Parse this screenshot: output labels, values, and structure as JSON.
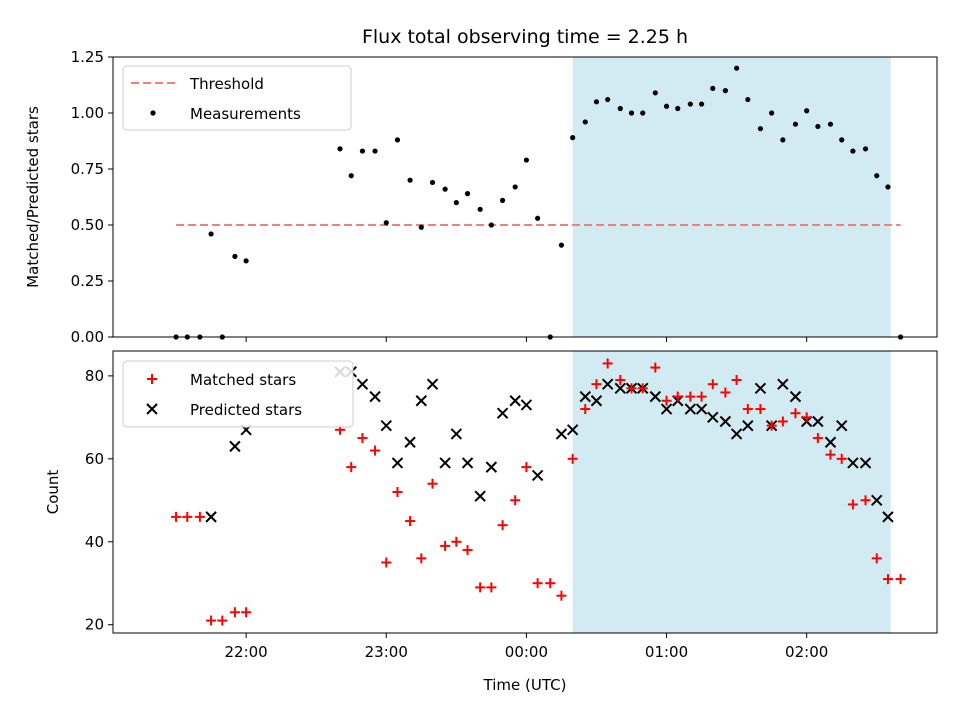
{
  "title": "Flux total observing time = 2.25 h",
  "colors": {
    "threshold": "#f08080",
    "measurement": "#000000",
    "matched": "#ff0000",
    "predicted": "#000000",
    "shade": "#add8e6"
  },
  "chart_data": [
    {
      "type": "scatter",
      "ylabel": "Matched/Predicted stars",
      "ylim": [
        0.0,
        1.25
      ],
      "yticks": [
        "0.00",
        "0.25",
        "0.50",
        "0.75",
        "1.00",
        "1.25"
      ],
      "xlim_hours": [
        21.05,
        26.93
      ],
      "shaded_span_hours": [
        24.33,
        26.6
      ],
      "legend_position": "top-left",
      "threshold": {
        "name": "Threshold",
        "value": 0.5,
        "x_start_hours": 21.5,
        "x_end_hours": 26.67
      },
      "series": [
        {
          "name": "Measurements",
          "points": [
            [
              21.5,
              0.0
            ],
            [
              21.58,
              0.0
            ],
            [
              21.67,
              0.0
            ],
            [
              21.75,
              0.46
            ],
            [
              21.83,
              0.0
            ],
            [
              21.92,
              0.36
            ],
            [
              22.0,
              0.34
            ],
            [
              22.67,
              0.84
            ],
            [
              22.75,
              0.72
            ],
            [
              22.83,
              0.83
            ],
            [
              22.92,
              0.83
            ],
            [
              23.0,
              0.51
            ],
            [
              23.08,
              0.88
            ],
            [
              23.17,
              0.7
            ],
            [
              23.25,
              0.49
            ],
            [
              23.33,
              0.69
            ],
            [
              23.42,
              0.66
            ],
            [
              23.5,
              0.6
            ],
            [
              23.58,
              0.64
            ],
            [
              23.67,
              0.57
            ],
            [
              23.75,
              0.5
            ],
            [
              23.83,
              0.61
            ],
            [
              23.92,
              0.67
            ],
            [
              24.0,
              0.79
            ],
            [
              24.08,
              0.53
            ],
            [
              24.17,
              0.0
            ],
            [
              24.25,
              0.41
            ],
            [
              24.33,
              0.89
            ],
            [
              24.42,
              0.96
            ],
            [
              24.5,
              1.05
            ],
            [
              24.58,
              1.06
            ],
            [
              24.67,
              1.02
            ],
            [
              24.75,
              1.0
            ],
            [
              24.83,
              1.0
            ],
            [
              24.92,
              1.09
            ],
            [
              25.0,
              1.03
            ],
            [
              25.08,
              1.02
            ],
            [
              25.17,
              1.04
            ],
            [
              25.25,
              1.04
            ],
            [
              25.33,
              1.11
            ],
            [
              25.42,
              1.1
            ],
            [
              25.5,
              1.2
            ],
            [
              25.58,
              1.06
            ],
            [
              25.67,
              0.93
            ],
            [
              25.75,
              1.0
            ],
            [
              25.83,
              0.88
            ],
            [
              25.92,
              0.95
            ],
            [
              26.0,
              1.01
            ],
            [
              26.08,
              0.94
            ],
            [
              26.17,
              0.95
            ],
            [
              26.25,
              0.88
            ],
            [
              26.33,
              0.83
            ],
            [
              26.42,
              0.84
            ],
            [
              26.5,
              0.72
            ],
            [
              26.58,
              0.67
            ],
            [
              26.67,
              0.0
            ]
          ]
        }
      ]
    },
    {
      "type": "scatter",
      "xlabel": "Time (UTC)",
      "ylabel": "Count",
      "ylim": [
        18,
        86
      ],
      "yticks": [
        "20",
        "40",
        "60",
        "80"
      ],
      "xlim_hours": [
        21.05,
        26.93
      ],
      "xticks": [
        {
          "hours": 22,
          "label": "22:00"
        },
        {
          "hours": 23,
          "label": "23:00"
        },
        {
          "hours": 24,
          "label": "00:00"
        },
        {
          "hours": 25,
          "label": "01:00"
        },
        {
          "hours": 26,
          "label": "02:00"
        }
      ],
      "shaded_span_hours": [
        24.33,
        26.6
      ],
      "legend_position": "top-left",
      "series": [
        {
          "name": "Matched stars",
          "marker": "plus",
          "points": [
            [
              21.5,
              46
            ],
            [
              21.58,
              46
            ],
            [
              21.67,
              46
            ],
            [
              21.75,
              21
            ],
            [
              21.83,
              21
            ],
            [
              21.92,
              23
            ],
            [
              22.0,
              23
            ],
            [
              22.67,
              67
            ],
            [
              22.75,
              58
            ],
            [
              22.83,
              65
            ],
            [
              22.92,
              62
            ],
            [
              23.0,
              35
            ],
            [
              23.08,
              52
            ],
            [
              23.17,
              45
            ],
            [
              23.25,
              36
            ],
            [
              23.33,
              54
            ],
            [
              23.42,
              39
            ],
            [
              23.5,
              40
            ],
            [
              23.58,
              38
            ],
            [
              23.67,
              29
            ],
            [
              23.75,
              29
            ],
            [
              23.83,
              44
            ],
            [
              23.92,
              50
            ],
            [
              24.0,
              58
            ],
            [
              24.08,
              30
            ],
            [
              24.17,
              30
            ],
            [
              24.25,
              27
            ],
            [
              24.33,
              60
            ],
            [
              24.42,
              72
            ],
            [
              24.5,
              78
            ],
            [
              24.58,
              83
            ],
            [
              24.67,
              79
            ],
            [
              24.75,
              77
            ],
            [
              24.83,
              77
            ],
            [
              24.92,
              82
            ],
            [
              25.0,
              74
            ],
            [
              25.08,
              75
            ],
            [
              25.17,
              75
            ],
            [
              25.25,
              75
            ],
            [
              25.33,
              78
            ],
            [
              25.42,
              76
            ],
            [
              25.5,
              79
            ],
            [
              25.58,
              72
            ],
            [
              25.67,
              72
            ],
            [
              25.75,
              68
            ],
            [
              25.83,
              69
            ],
            [
              25.92,
              71
            ],
            [
              26.0,
              70
            ],
            [
              26.08,
              65
            ],
            [
              26.17,
              61
            ],
            [
              26.25,
              60
            ],
            [
              26.33,
              49
            ],
            [
              26.42,
              50
            ],
            [
              26.5,
              36
            ],
            [
              26.58,
              31
            ],
            [
              26.67,
              31
            ]
          ]
        },
        {
          "name": "Predicted stars",
          "marker": "x",
          "points": [
            [
              21.75,
              46
            ],
            [
              21.92,
              63
            ],
            [
              22.0,
              67
            ],
            [
              22.67,
              81
            ],
            [
              22.75,
              81
            ],
            [
              22.83,
              78
            ],
            [
              22.92,
              75
            ],
            [
              23.0,
              68
            ],
            [
              23.08,
              59
            ],
            [
              23.17,
              64
            ],
            [
              23.25,
              74
            ],
            [
              23.33,
              78
            ],
            [
              23.42,
              59
            ],
            [
              23.5,
              66
            ],
            [
              23.58,
              59
            ],
            [
              23.67,
              51
            ],
            [
              23.75,
              58
            ],
            [
              23.83,
              71
            ],
            [
              23.92,
              74
            ],
            [
              24.0,
              73
            ],
            [
              24.08,
              56
            ],
            [
              24.25,
              66
            ],
            [
              24.33,
              67
            ],
            [
              24.42,
              75
            ],
            [
              24.5,
              74
            ],
            [
              24.58,
              78
            ],
            [
              24.67,
              77
            ],
            [
              24.75,
              77
            ],
            [
              24.83,
              77
            ],
            [
              24.92,
              75
            ],
            [
              25.0,
              72
            ],
            [
              25.08,
              74
            ],
            [
              25.17,
              72
            ],
            [
              25.25,
              72
            ],
            [
              25.33,
              70
            ],
            [
              25.42,
              69
            ],
            [
              25.5,
              66
            ],
            [
              25.58,
              68
            ],
            [
              25.67,
              77
            ],
            [
              25.75,
              68
            ],
            [
              25.83,
              78
            ],
            [
              25.92,
              75
            ],
            [
              26.0,
              69
            ],
            [
              26.08,
              69
            ],
            [
              26.17,
              64
            ],
            [
              26.25,
              68
            ],
            [
              26.33,
              59
            ],
            [
              26.42,
              59
            ],
            [
              26.5,
              50
            ],
            [
              26.58,
              46
            ]
          ]
        }
      ]
    }
  ]
}
